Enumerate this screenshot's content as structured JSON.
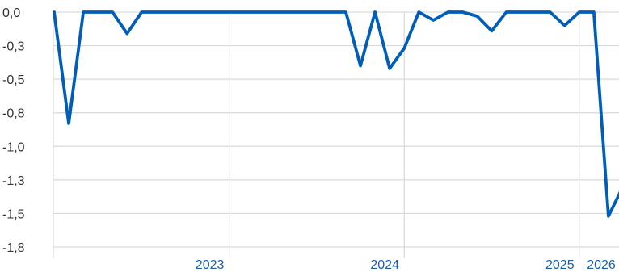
{
  "chart_data": {
    "type": "line",
    "title": "",
    "xlabel": "",
    "ylabel": "",
    "x_start": "2022-01",
    "x_step": "month",
    "values": [
      0.0,
      -0.83,
      0.0,
      0.0,
      0.0,
      -0.16,
      0.0,
      0.0,
      0.0,
      0.0,
      0.0,
      0.0,
      0.0,
      0.0,
      0.0,
      0.0,
      0.0,
      0.0,
      0.0,
      0.0,
      0.0,
      -0.4,
      0.0,
      -0.42,
      -0.27,
      0.0,
      -0.06,
      0.0,
      0.0,
      -0.03,
      -0.14,
      0.0,
      0.0,
      0.0,
      0.0,
      -0.1,
      0.0,
      0.0,
      -1.52,
      -1.3
    ],
    "y_ticks": [
      "0,0",
      "-0,3",
      "-0,5",
      "-0,8",
      "-1,0",
      "-1,3",
      "-1,5",
      "-1,8"
    ],
    "x_ticks": [
      "2023",
      "2024",
      "2025",
      "2026"
    ],
    "ylim": [
      -1.75,
      0
    ],
    "grid": true,
    "legend": "none",
    "colors": {
      "line": "#005eb8",
      "grid": "#d9d9d9",
      "x_tick_text": "#1b5fa8",
      "y_tick_text": "#333333"
    }
  }
}
